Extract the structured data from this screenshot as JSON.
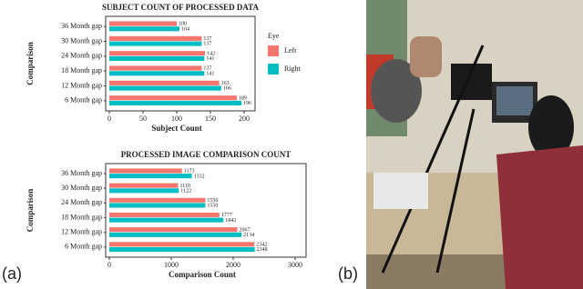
{
  "chart_data": [
    {
      "type": "hbar",
      "title": "SUBJECT COUNT OF PROCESSED DATA",
      "y_label": "Comparison",
      "x_label": "Subject Count",
      "categories": [
        "36 Month gap",
        "30 Month gap",
        "24 Month gap",
        "18 Month gap",
        "12 Month gap",
        "6 Month gap"
      ],
      "series": [
        {
          "name": "Left",
          "color": "#f8766d",
          "values": [
            100,
            137,
            142,
            137,
            163,
            189
          ]
        },
        {
          "name": "Right",
          "color": "#00bfc4",
          "values": [
            104,
            137,
            141,
            141,
            166,
            196
          ]
        }
      ],
      "xlim": [
        0,
        200
      ],
      "xticks": [
        0,
        50,
        100,
        150,
        200
      ],
      "legend_title": "Eye",
      "legend": "right"
    },
    {
      "type": "hbar",
      "title": "PROCESSED IMAGE COMPARISON COUNT",
      "y_label": "Comparison",
      "x_label": "Comparison Count",
      "categories": [
        "36 Month gap",
        "30 Month gap",
        "24 Month gap",
        "18 Month gap",
        "12 Month gap",
        "6 Month gap"
      ],
      "series": [
        {
          "name": "Left",
          "color": "#f8766d",
          "values": [
            1173,
            1110,
            1550,
            1777,
            2067,
            2342
          ]
        },
        {
          "name": "Right",
          "color": "#00bfc4",
          "values": [
            1332,
            1122,
            1550,
            1842,
            2134,
            2348
          ]
        }
      ],
      "xlim": [
        0,
        3000
      ],
      "xticks": [
        0,
        1000,
        2000,
        3000
      ]
    }
  ],
  "panel_labels": [
    "(a)",
    "(b)"
  ]
}
